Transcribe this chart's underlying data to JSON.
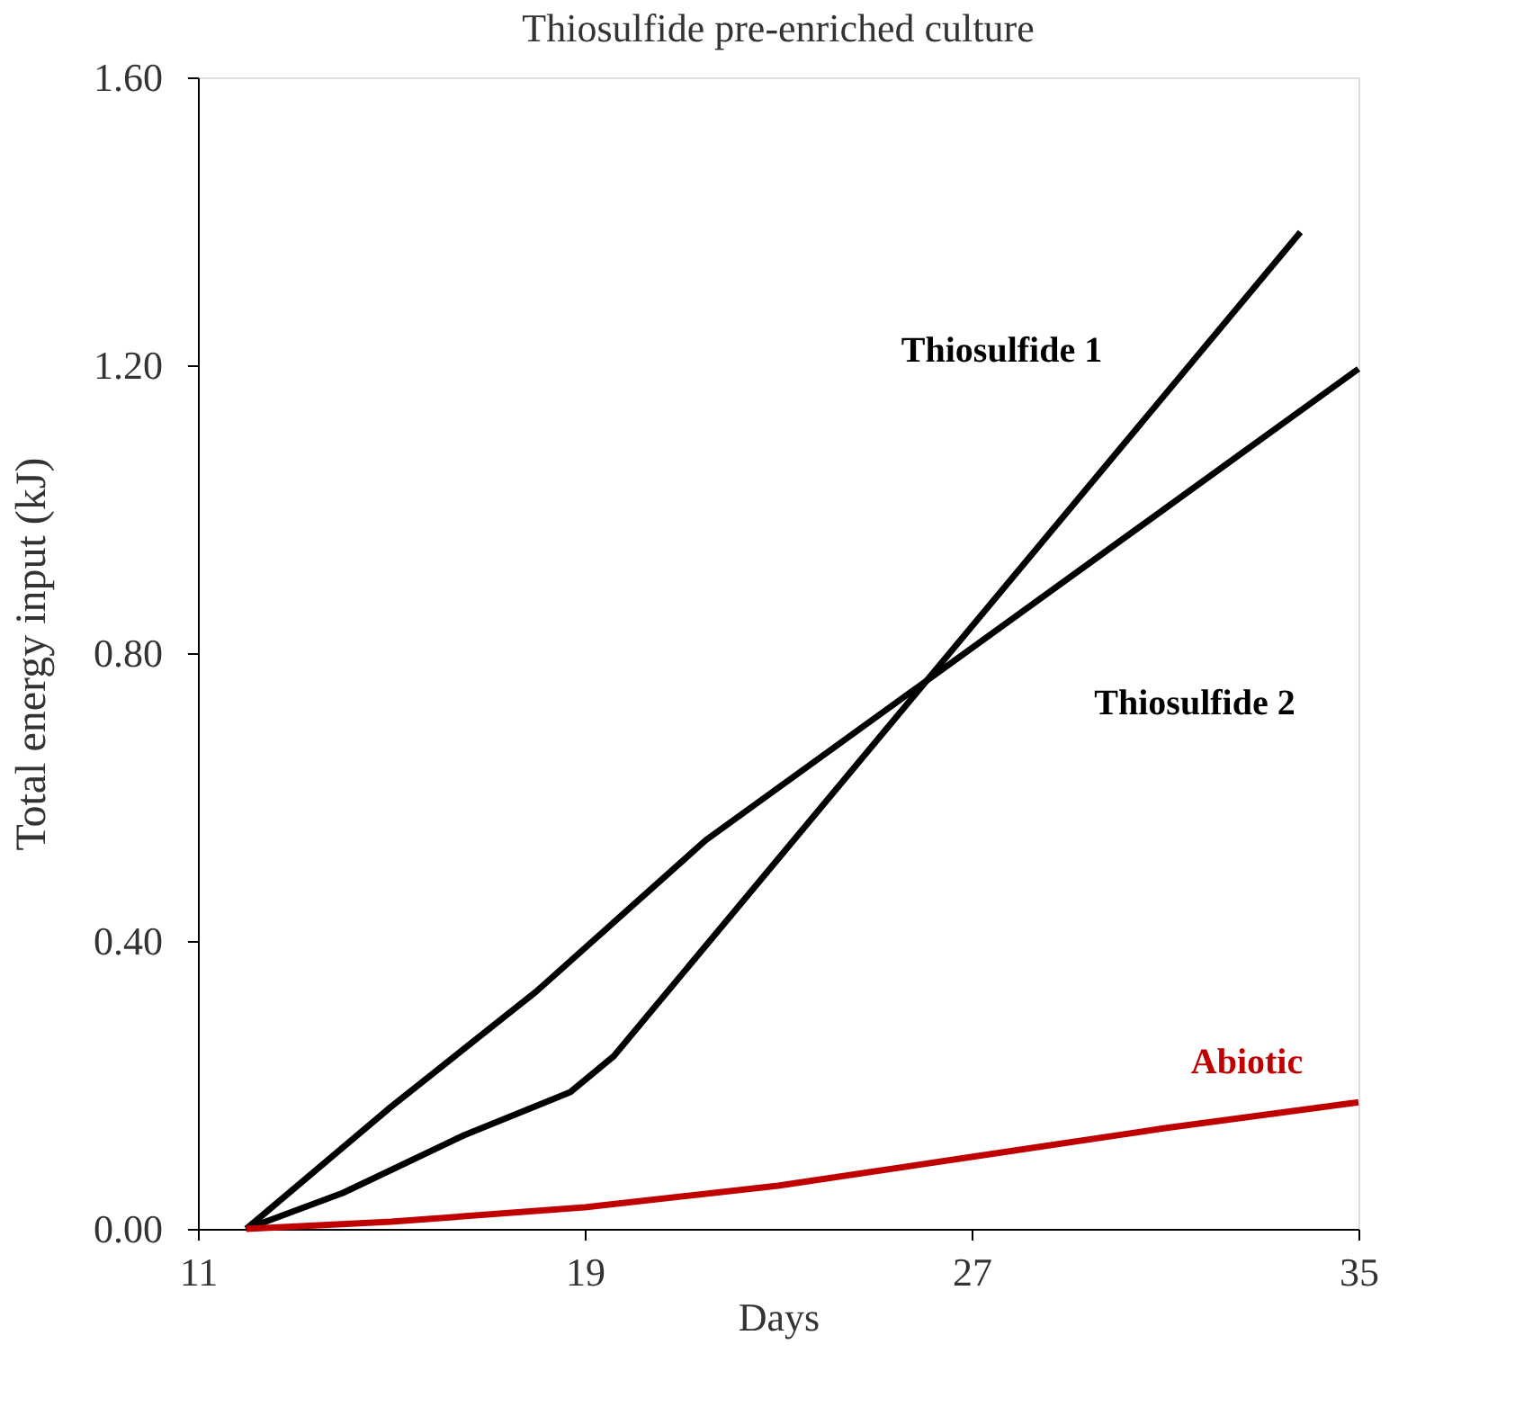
{
  "chart_data": {
    "type": "line",
    "title": "Thiosulfide pre-enriched culture",
    "xlabel": "Days",
    "ylabel": "Total energy input (kJ)",
    "xlim": [
      11,
      35
    ],
    "xticks": [
      11,
      19,
      27,
      35
    ],
    "ylim": [
      0,
      1.6
    ],
    "yticks": [
      {
        "value": 0,
        "label": "0.00"
      },
      {
        "value": 0.4,
        "label": "0.40"
      },
      {
        "value": 0.8,
        "label": "0.80"
      },
      {
        "value": 1.2,
        "label": "1.20"
      },
      {
        "value": 1.6,
        "label": "1.60"
      }
    ],
    "grid": false,
    "marker": "none",
    "line_style": "solid",
    "series": [
      {
        "name": "Thiosulfide 1",
        "color": "#000000",
        "x": [
          12,
          14,
          16.5,
          18.7,
          19.6,
          33.8
        ],
        "values": [
          0,
          0.05,
          0.13,
          0.19,
          0.24,
          1.385
        ]
      },
      {
        "name": "Thiosulfide 2",
        "color": "#000000",
        "x": [
          12,
          15,
          18,
          21.5,
          35
        ],
        "values": [
          0,
          0.17,
          0.33,
          0.54,
          1.195
        ]
      },
      {
        "name": "Abiotic",
        "color": "#c00000",
        "x": [
          12,
          15,
          19,
          23,
          27,
          31,
          35
        ],
        "values": [
          0,
          0.01,
          0.03,
          0.06,
          0.1,
          0.14,
          0.176
        ]
      }
    ]
  }
}
